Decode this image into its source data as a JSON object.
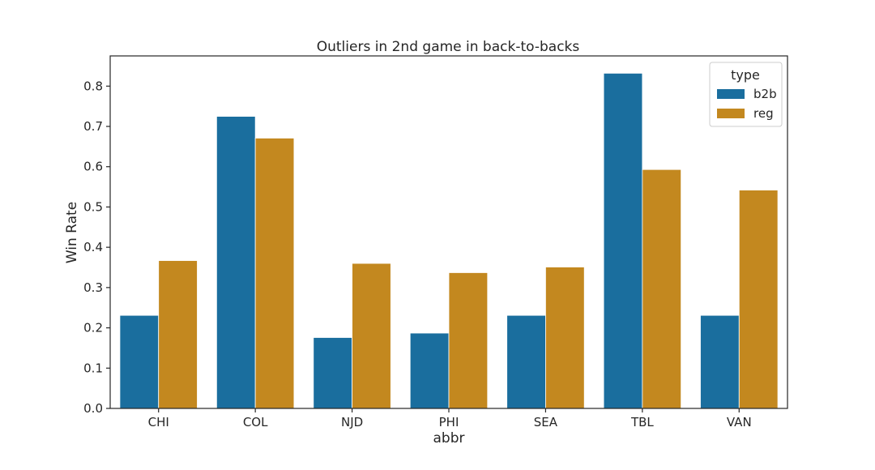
{
  "chart_data": {
    "type": "bar",
    "title": "Outliers in 2nd game in back-to-backs",
    "xlabel": "abbr",
    "ylabel": "Win Rate",
    "categories": [
      "CHI",
      "COL",
      "NJD",
      "PHI",
      "SEA",
      "TBL",
      "VAN"
    ],
    "series": [
      {
        "name": "b2b",
        "color": "#1a6e9e",
        "values": [
          0.231,
          0.725,
          0.176,
          0.187,
          0.231,
          0.832,
          0.231
        ]
      },
      {
        "name": "reg",
        "color": "#c3881f",
        "values": [
          0.367,
          0.671,
          0.36,
          0.337,
          0.351,
          0.593,
          0.542
        ]
      }
    ],
    "ylim": [
      0,
      0.875
    ],
    "yticks": [
      0.0,
      0.1,
      0.2,
      0.3,
      0.4,
      0.5,
      0.6,
      0.7,
      0.8
    ],
    "ytick_labels": [
      "0.0",
      "0.1",
      "0.2",
      "0.3",
      "0.4",
      "0.5",
      "0.6",
      "0.7",
      "0.8"
    ],
    "grid": false,
    "legend": {
      "title": "type",
      "position": "upper right"
    }
  }
}
